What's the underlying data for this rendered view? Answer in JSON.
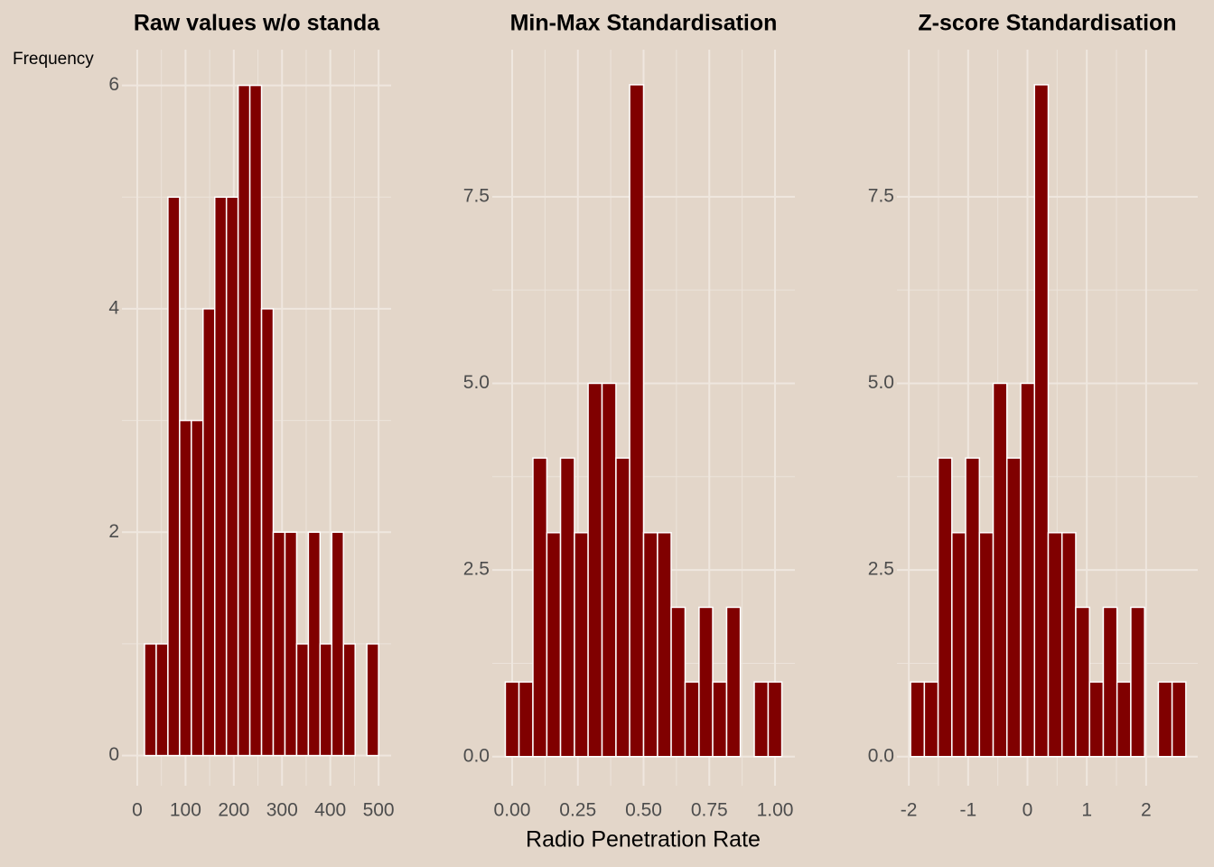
{
  "chart_data": [
    {
      "type": "histogram",
      "title": "Raw values w/o standa",
      "ylabel": "Frequency",
      "bins": [
        15,
        39.25,
        63.5,
        87.75,
        112,
        136.25,
        160.5,
        184.75,
        209,
        233.25,
        257.5,
        281.75,
        306,
        330.25,
        354.5,
        378.75,
        403,
        427.25,
        451.5,
        475.75,
        500
      ],
      "values": [
        1,
        1,
        5,
        3,
        3,
        4,
        5,
        5,
        6,
        6,
        4,
        2,
        2,
        1,
        2,
        1,
        2,
        1,
        0,
        1
      ],
      "color": "#800000",
      "xlim": [
        -31.8,
        526
      ],
      "ylim": [
        -0.27,
        6.32
      ],
      "xticks": [
        0,
        100,
        200,
        300,
        400,
        500
      ],
      "yticks": [
        0,
        2,
        4,
        6
      ],
      "grid": true
    },
    {
      "type": "histogram",
      "title": "Min-Max Standardisation",
      "xlabel": "Radio Penetration Rate",
      "bins": [
        -0.026,
        0.026,
        0.079,
        0.132,
        0.184,
        0.237,
        0.289,
        0.342,
        0.395,
        0.447,
        0.5,
        0.553,
        0.605,
        0.658,
        0.711,
        0.763,
        0.816,
        0.868,
        0.921,
        0.974,
        1.026
      ],
      "values": [
        1,
        1,
        4,
        3,
        4,
        3,
        5,
        5,
        4,
        9,
        3,
        3,
        2,
        1,
        2,
        1,
        2,
        0,
        1,
        1
      ],
      "color": "#800000",
      "xlim": [
        -0.0756,
        1.0756
      ],
      "ylim": [
        -0.39,
        9.47
      ],
      "xticks": [
        {
          "value": 0,
          "label": "0.00"
        },
        0.25,
        {
          "value": 0.5,
          "label": "0.50"
        },
        0.75,
        {
          "value": 1,
          "label": "1.00"
        }
      ],
      "yticks": [
        {
          "value": 0,
          "label": "0.0"
        },
        2.5,
        {
          "value": 5,
          "label": "5.0"
        },
        7.5
      ],
      "grid": true
    },
    {
      "type": "histogram",
      "title": "Z-score Standardisation",
      "bins": [
        -1.97,
        -1.738,
        -1.506,
        -1.274,
        -1.042,
        -0.81,
        -0.578,
        -0.346,
        -0.114,
        0.118,
        0.35,
        0.582,
        0.814,
        1.046,
        1.278,
        1.51,
        1.742,
        1.974,
        2.206,
        2.438,
        2.67
      ],
      "values": [
        1,
        1,
        4,
        3,
        4,
        3,
        5,
        4,
        5,
        9,
        3,
        3,
        2,
        1,
        2,
        1,
        2,
        0,
        1,
        1
      ],
      "color": "#800000",
      "xlim": [
        -2.2,
        2.87
      ],
      "ylim": [
        -0.39,
        9.47
      ],
      "xticks": [
        -2,
        -1,
        0,
        1,
        2
      ],
      "yticks": [
        {
          "value": 0,
          "label": "0.0"
        },
        2.5,
        {
          "value": 5,
          "label": "5.0"
        },
        7.5
      ],
      "grid": true
    }
  ]
}
